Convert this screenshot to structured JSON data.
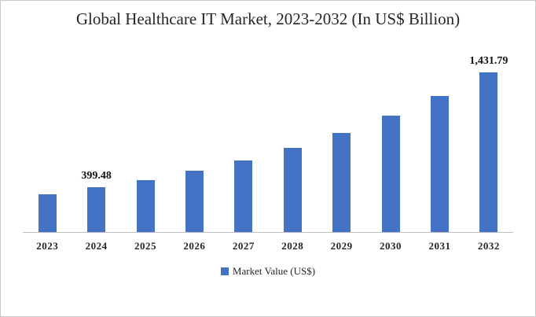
{
  "colors": {
    "bar": "#4472C4",
    "axis": "#BFBFBF",
    "text": "#262626"
  },
  "chart_data": {
    "type": "bar",
    "title": "Global Healthcare IT Market, 2023-2032 (In US$ Billion)",
    "categories": [
      "2023",
      "2024",
      "2025",
      "2026",
      "2027",
      "2028",
      "2029",
      "2030",
      "2031",
      "2032"
    ],
    "values": [
      340.5,
      399.48,
      468.6,
      549.8,
      644.9,
      756.6,
      887.5,
      1041.1,
      1221.4,
      1431.79
    ],
    "data_labels": [
      "",
      "399.48",
      "",
      "",
      "",
      "",
      "",
      "",
      "",
      "1,431.79"
    ],
    "xlabel": "",
    "ylabel": "",
    "ylim": [
      0,
      1500
    ],
    "grid": false,
    "y_axis_visible": false,
    "legend_position": "bottom",
    "legend_label": "Market Value (US$)"
  }
}
